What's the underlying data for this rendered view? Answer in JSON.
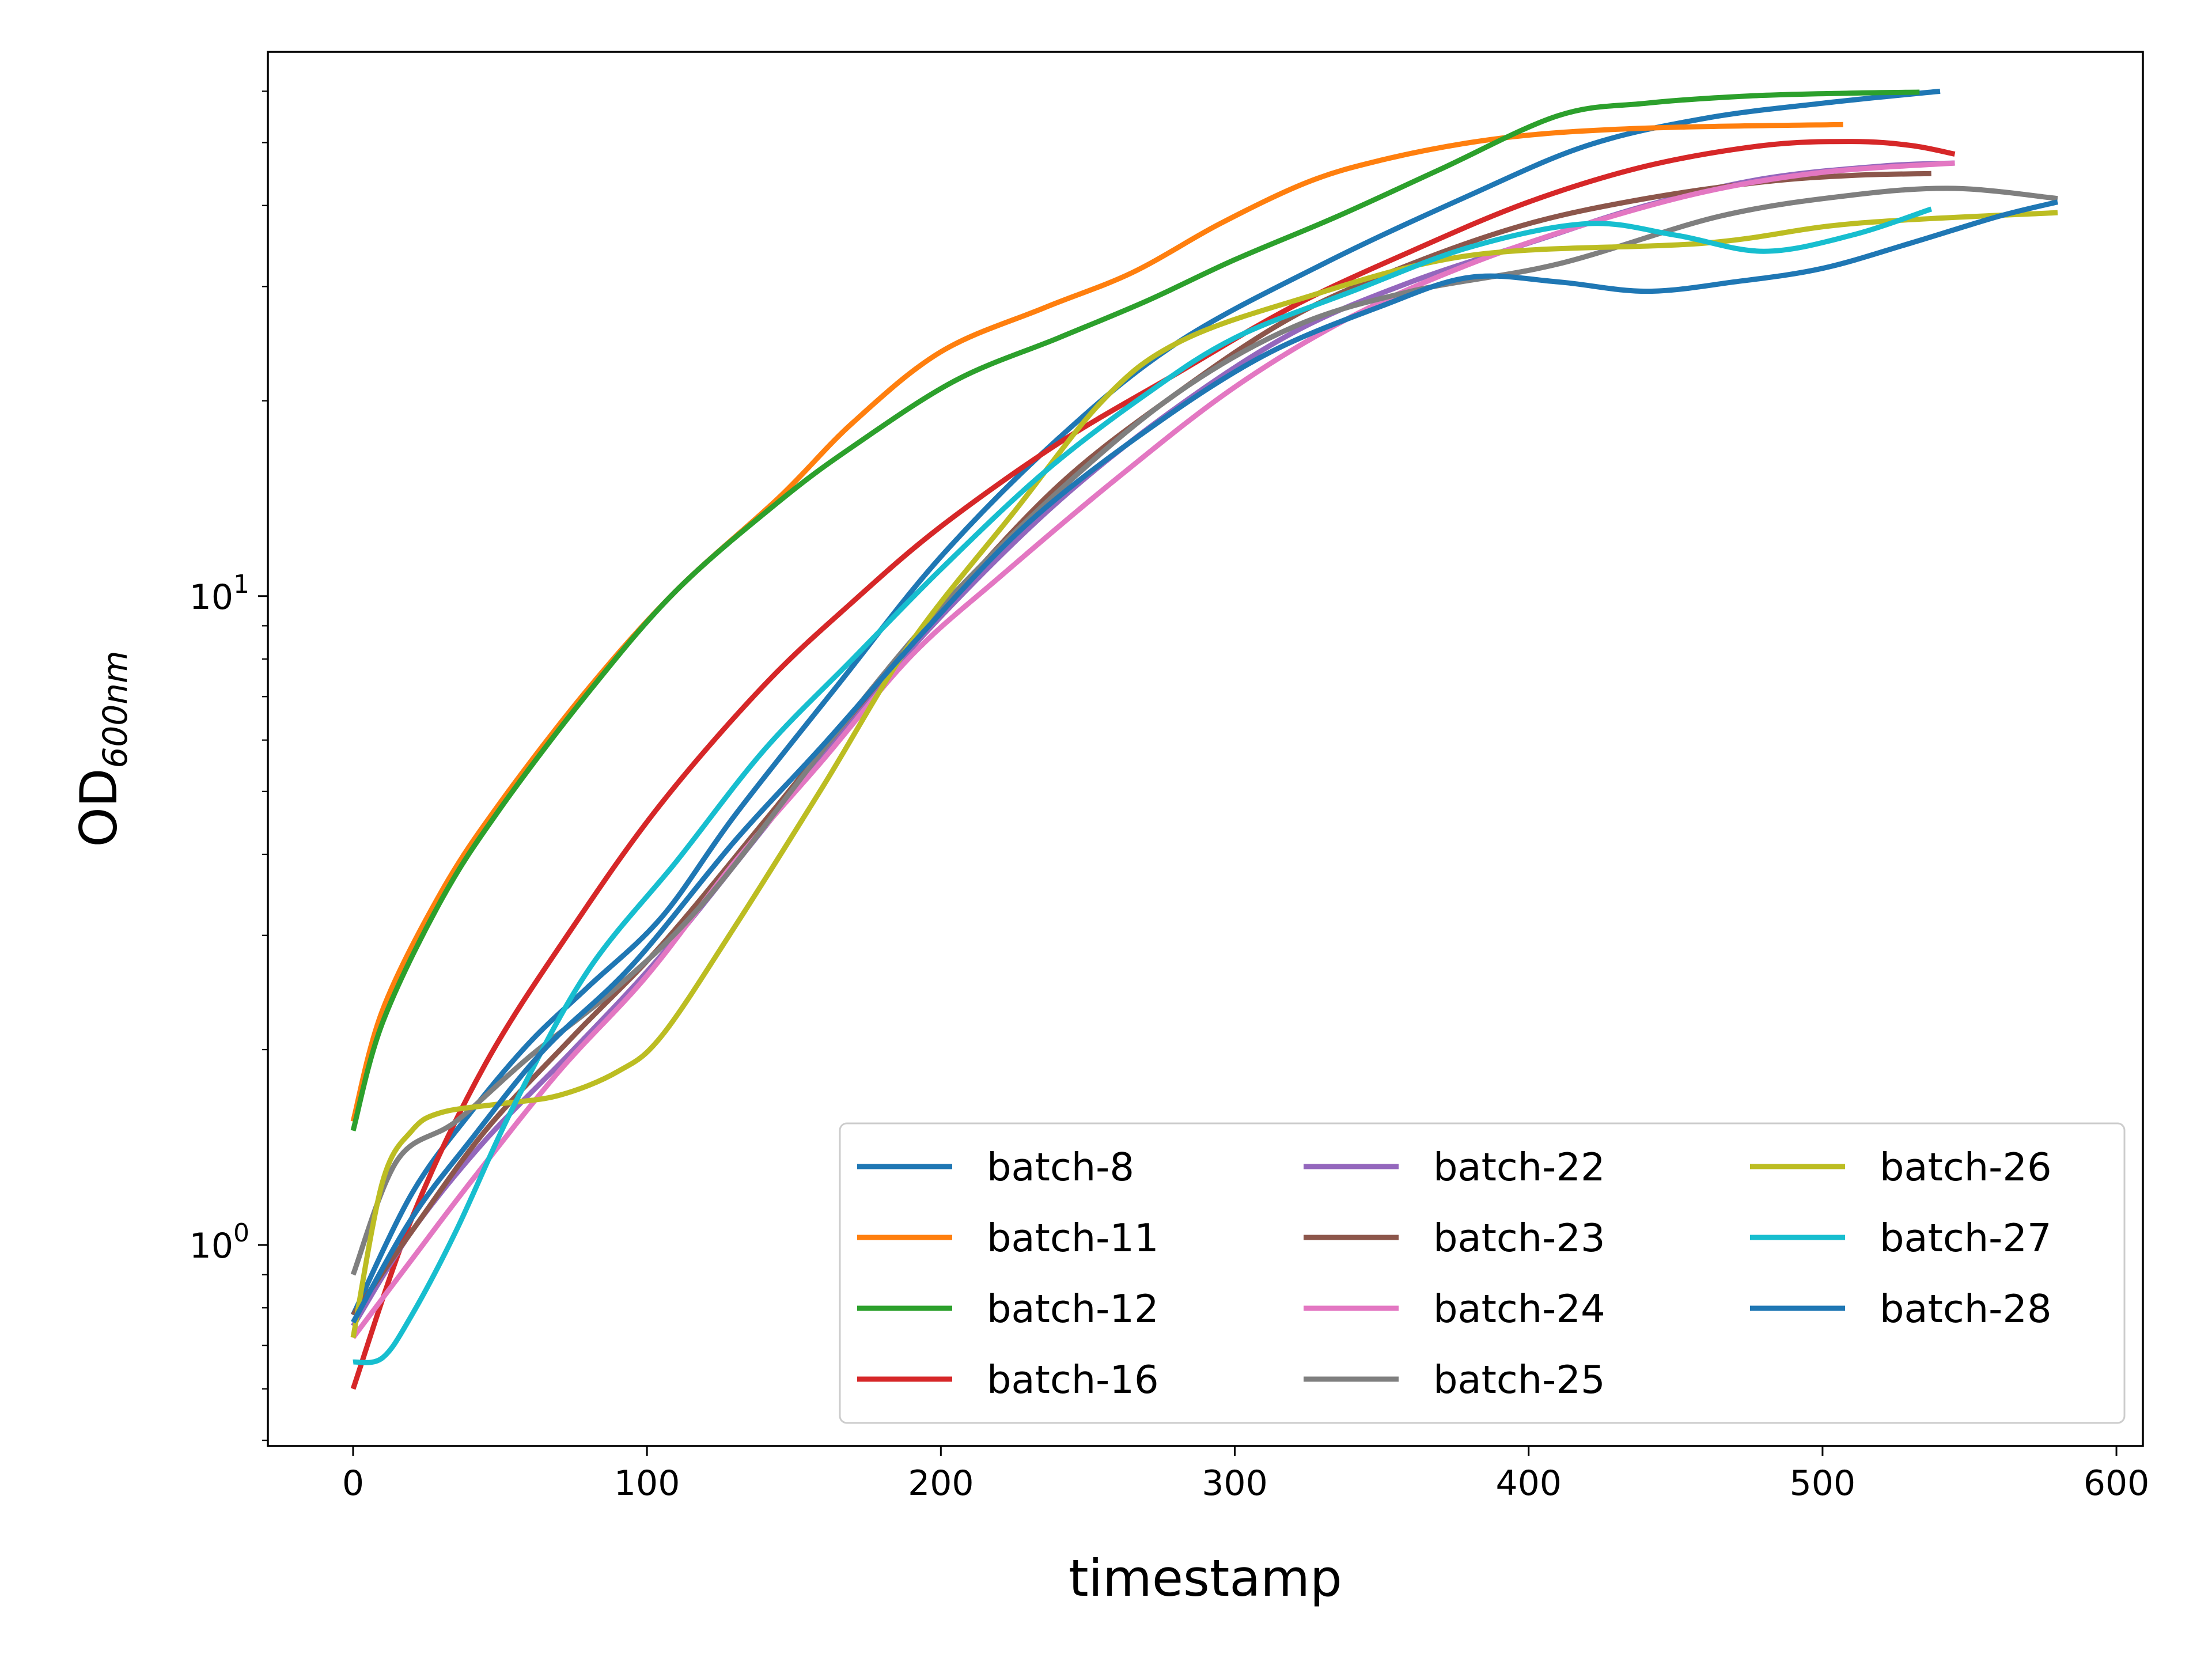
{
  "chart_data": {
    "type": "line",
    "title": "",
    "xlabel": "timestamp",
    "ylabel_main": "OD",
    "ylabel_sub": "600nm",
    "yscale": "log",
    "xlim": [
      -29,
      609
    ],
    "ylim": [
      0.49,
      69
    ],
    "xticks": [
      0,
      100,
      200,
      300,
      400,
      500,
      600
    ],
    "yticks": [
      {
        "value": 1,
        "base": "10",
        "exp": "0"
      },
      {
        "value": 10,
        "base": "10",
        "exp": "1"
      }
    ],
    "legend_position": "lower right",
    "legend_columns": 3,
    "grid": false,
    "series": [
      {
        "name": "batch-8",
        "color": "#1f77b4",
        "x": [
          0,
          20,
          40,
          60,
          80,
          105,
          130,
          165,
          200,
          240,
          280,
          330,
          380,
          420,
          460,
          500,
          540
        ],
        "y": [
          0.78,
          1.2,
          1.6,
          2.05,
          2.5,
          3.2,
          4.6,
          7.3,
          11.5,
          17.5,
          24.5,
          32.5,
          41.5,
          49.5,
          54.5,
          57.5,
          60
        ]
      },
      {
        "name": "batch-11",
        "color": "#ff7f0e",
        "x": [
          0,
          10,
          30,
          50,
          80,
          110,
          145,
          170,
          200,
          235,
          265,
          295,
          325,
          350,
          380,
          410,
          450,
          507
        ],
        "y": [
          1.55,
          2.3,
          3.5,
          4.8,
          7.2,
          10.2,
          14.2,
          18.5,
          23.8,
          27.8,
          31.5,
          37.5,
          43.5,
          47.0,
          50.0,
          51.8,
          52.8,
          53.3
        ]
      },
      {
        "name": "batch-12",
        "color": "#2ca02c",
        "x": [
          0,
          10,
          30,
          50,
          80,
          110,
          145,
          170,
          205,
          240,
          270,
          300,
          335,
          370,
          410,
          440,
          475,
          510,
          533
        ],
        "y": [
          1.5,
          2.2,
          3.4,
          4.7,
          7.1,
          10.2,
          14.0,
          17.0,
          21.5,
          25.0,
          28.5,
          33.0,
          38.5,
          45.5,
          55.0,
          57.5,
          59.0,
          59.6,
          59.8
        ]
      },
      {
        "name": "batch-16",
        "color": "#d62728",
        "x": [
          0,
          20,
          45,
          75,
          105,
          140,
          170,
          200,
          240,
          280,
          320,
          360,
          400,
          440,
          480,
          510,
          530,
          545
        ],
        "y": [
          0.6,
          1.1,
          1.9,
          3.1,
          4.8,
          7.3,
          9.8,
          12.8,
          17.2,
          22.0,
          28.0,
          34.0,
          40.5,
          46.0,
          49.5,
          50.2,
          49.5,
          48.0
        ]
      },
      {
        "name": "batch-22",
        "color": "#9467bd",
        "x": [
          0,
          20,
          45,
          75,
          105,
          140,
          170,
          200,
          240,
          280,
          320,
          360,
          400,
          440,
          480,
          520,
          545
        ],
        "y": [
          0.75,
          1.05,
          1.45,
          2.0,
          2.8,
          4.4,
          6.5,
          9.3,
          14.0,
          19.5,
          25.5,
          30.5,
          35.0,
          40.0,
          44.0,
          46.0,
          46.5
        ]
      },
      {
        "name": "batch-23",
        "color": "#8c564b",
        "x": [
          0,
          20,
          45,
          75,
          105,
          140,
          170,
          200,
          240,
          280,
          320,
          360,
          400,
          440,
          480,
          510,
          537
        ],
        "y": [
          0.78,
          1.05,
          1.5,
          2.1,
          2.9,
          4.5,
          6.6,
          9.5,
          14.8,
          20.5,
          27.0,
          32.5,
          37.5,
          41.0,
          43.5,
          44.5,
          44.8
        ]
      },
      {
        "name": "batch-24",
        "color": "#e377c2",
        "x": [
          0,
          20,
          40,
          70,
          100,
          130,
          160,
          190,
          220,
          260,
          300,
          340,
          380,
          420,
          460,
          500,
          545
        ],
        "y": [
          0.72,
          0.95,
          1.25,
          1.85,
          2.6,
          3.9,
          5.6,
          8.1,
          10.7,
          15.2,
          21.0,
          27.0,
          32.5,
          37.5,
          42.0,
          45.0,
          46.5
        ]
      },
      {
        "name": "batch-25",
        "color": "#7f7f7f",
        "x": [
          0,
          15,
          35,
          60,
          90,
          120,
          165,
          200,
          240,
          280,
          320,
          360,
          410,
          465,
          510,
          545,
          580
        ],
        "y": [
          0.9,
          1.35,
          1.55,
          1.95,
          2.5,
          3.4,
          6.2,
          9.6,
          14.5,
          20.5,
          26.0,
          29.5,
          32.5,
          38.5,
          41.5,
          42.5,
          41.0
        ]
      },
      {
        "name": "batch-26",
        "color": "#bcbd22",
        "x": [
          0,
          10,
          20,
          30,
          50,
          70,
          90,
          105,
          130,
          160,
          190,
          225,
          255,
          280,
          320,
          380,
          460,
          510,
          580
        ],
        "y": [
          0.72,
          1.25,
          1.5,
          1.6,
          1.65,
          1.7,
          1.85,
          2.1,
          3.1,
          5.1,
          8.5,
          13.5,
          20.0,
          24.5,
          28.5,
          33.5,
          35.0,
          37.5,
          39.0
        ]
      },
      {
        "name": "batch-27",
        "color": "#17becf",
        "x": [
          0,
          10,
          20,
          35,
          55,
          80,
          110,
          140,
          170,
          200,
          235,
          270,
          300,
          340,
          380,
          420,
          450,
          480,
          510,
          537
        ],
        "y": [
          0.66,
          0.67,
          0.78,
          1.05,
          1.65,
          2.65,
          3.9,
          5.8,
          8.0,
          11.0,
          15.5,
          20.5,
          25.0,
          29.5,
          34.5,
          37.5,
          36.0,
          34.0,
          36.0,
          39.5
        ]
      },
      {
        "name": "batch-28",
        "color": "#1f77b4",
        "x": [
          0,
          20,
          40,
          65,
          95,
          130,
          160,
          195,
          230,
          270,
          310,
          350,
          380,
          410,
          440,
          470,
          500,
          530,
          560,
          580
        ],
        "y": [
          0.76,
          1.1,
          1.45,
          2.0,
          2.7,
          4.2,
          5.9,
          8.9,
          13.0,
          18.0,
          23.5,
          28.0,
          31.0,
          30.5,
          29.5,
          30.5,
          32.0,
          35.0,
          38.5,
          40.5
        ]
      }
    ]
  }
}
